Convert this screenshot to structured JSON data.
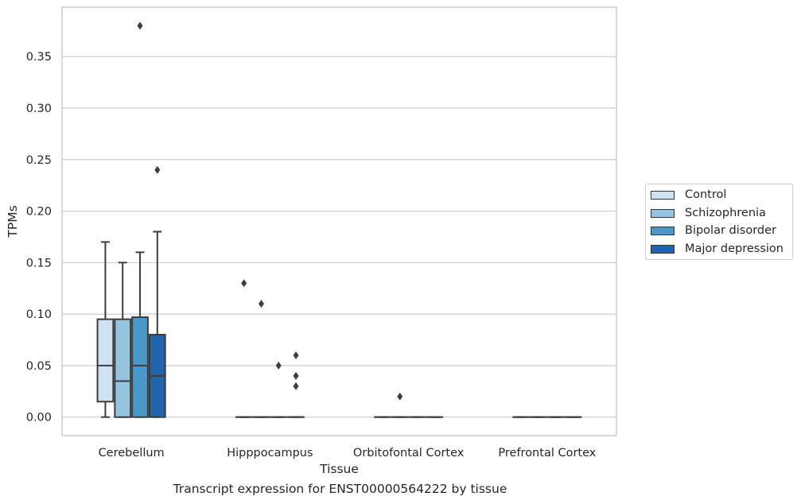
{
  "chart_data": {
    "type": "box",
    "title": "",
    "caption": "Transcript expression for ENST00000564222 by tissue",
    "xlabel": "Tissue",
    "ylabel": "TPMs",
    "ylim": [
      -0.018,
      0.398
    ],
    "yticks": [
      "0.00",
      "0.05",
      "0.10",
      "0.15",
      "0.20",
      "0.25",
      "0.30",
      "0.35"
    ],
    "ytick_values": [
      0,
      0.05,
      0.1,
      0.15,
      0.2,
      0.25,
      0.3,
      0.35
    ],
    "grid": "horizontal",
    "legend_position": "outside-right",
    "categories": [
      "Cerebellum",
      "Hipppocampus",
      "Orbitofontal Cortex",
      "Prefrontal Cortex"
    ],
    "series": [
      {
        "name": "Control",
        "color": "#d0e1f2",
        "boxes": [
          {
            "min": 0.0,
            "q1": 0.015,
            "median": 0.05,
            "q3": 0.095,
            "max": 0.17,
            "outliers": []
          },
          {
            "min": 0,
            "q1": 0,
            "median": 0,
            "q3": 0,
            "max": 0,
            "outliers": [
              0.13
            ]
          },
          {
            "min": 0,
            "q1": 0,
            "median": 0,
            "q3": 0,
            "max": 0,
            "outliers": []
          },
          {
            "min": 0,
            "q1": 0,
            "median": 0,
            "q3": 0,
            "max": 0,
            "outliers": []
          }
        ]
      },
      {
        "name": "Schizophrenia",
        "color": "#94c4df",
        "boxes": [
          {
            "min": 0.0,
            "q1": 0.0,
            "median": 0.035,
            "q3": 0.095,
            "max": 0.15,
            "outliers": []
          },
          {
            "min": 0,
            "q1": 0,
            "median": 0,
            "q3": 0,
            "max": 0,
            "outliers": [
              0.11
            ]
          },
          {
            "min": 0,
            "q1": 0,
            "median": 0,
            "q3": 0,
            "max": 0,
            "outliers": [
              0.02
            ]
          },
          {
            "min": 0,
            "q1": 0,
            "median": 0,
            "q3": 0,
            "max": 0,
            "outliers": []
          }
        ]
      },
      {
        "name": "Bipolar disorder",
        "color": "#4a98c9",
        "boxes": [
          {
            "min": 0.0,
            "q1": 0.0,
            "median": 0.05,
            "q3": 0.097,
            "max": 0.16,
            "outliers": [
              0.38
            ]
          },
          {
            "min": 0,
            "q1": 0,
            "median": 0,
            "q3": 0,
            "max": 0,
            "outliers": [
              0.05
            ]
          },
          {
            "min": 0,
            "q1": 0,
            "median": 0,
            "q3": 0,
            "max": 0,
            "outliers": []
          },
          {
            "min": 0,
            "q1": 0,
            "median": 0,
            "q3": 0,
            "max": 0,
            "outliers": []
          }
        ]
      },
      {
        "name": "Major depression",
        "color": "#2164ab",
        "boxes": [
          {
            "min": 0.0,
            "q1": 0.0,
            "median": 0.04,
            "q3": 0.08,
            "max": 0.18,
            "outliers": [
              0.24
            ]
          },
          {
            "min": 0,
            "q1": 0,
            "median": 0,
            "q3": 0,
            "max": 0,
            "outliers": [
              0.06,
              0.04,
              0.03
            ]
          },
          {
            "min": 0,
            "q1": 0,
            "median": 0,
            "q3": 0,
            "max": 0,
            "outliers": []
          },
          {
            "min": 0,
            "q1": 0,
            "median": 0,
            "q3": 0,
            "max": 0,
            "outliers": []
          }
        ]
      }
    ]
  }
}
